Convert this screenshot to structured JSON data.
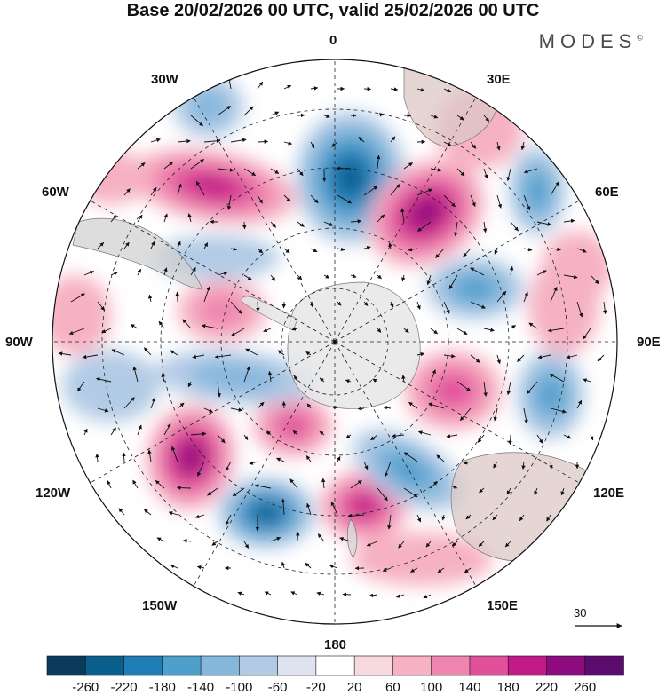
{
  "title": "Base 20/02/2026 00 UTC, valid 25/02/2026 00 UTC",
  "brand": {
    "name": "MODES",
    "mark": "©"
  },
  "map": {
    "projection": "south polar stereographic",
    "longitude_labels": {
      "top": "0",
      "bottom": "180",
      "left": "90W",
      "right": "90E",
      "upper_left": "30W",
      "upper_right": "30E",
      "mid_upper_left": "60W",
      "mid_upper_right": "60E",
      "mid_lower_left": "120W",
      "mid_lower_right": "120E",
      "lower_left": "150W",
      "lower_right": "150E"
    },
    "reference_vector": "30"
  },
  "colors": {
    "land": "#d9d9d9",
    "antarctica": "#e9e9e9",
    "palette": [
      "#0a3a5c",
      "#0b5f8d",
      "#1f7db6",
      "#4f9fcc",
      "#85b7dd",
      "#b2cbe5",
      "#dfe3f0",
      "#ffffff",
      "#f8d9dd",
      "#f6b1c2",
      "#ef86b0",
      "#e1509b",
      "#c01b86",
      "#8d0a7f",
      "#5b0c6e"
    ]
  },
  "legend": {
    "ticks": [
      "-260",
      "-220",
      "-180",
      "-140",
      "-100",
      "-60",
      "-20",
      "20",
      "60",
      "100",
      "140",
      "180",
      "220",
      "260"
    ]
  }
}
